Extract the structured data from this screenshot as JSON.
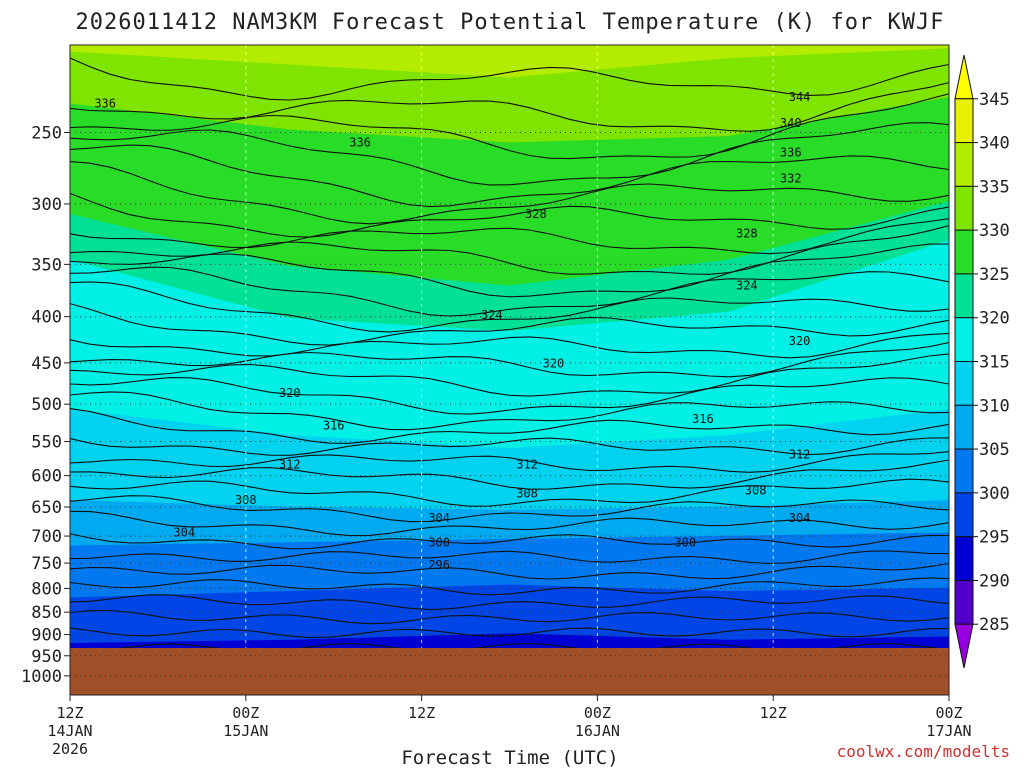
{
  "chart_data": {
    "type": "heatmap",
    "title": "2026011412 NAM3KM Forecast Potential Temperature (K) for KWJF",
    "xlabel": "Forecast Time (UTC)",
    "credit": "coolwx.com/modelts",
    "y_ticks": [
      "250",
      "300",
      "350",
      "400",
      "450",
      "500",
      "550",
      "600",
      "650",
      "700",
      "750",
      "800",
      "850",
      "900",
      "950",
      "1000"
    ],
    "x_ticks": [
      {
        "hour": "12Z",
        "date": "14JAN",
        "year": "2026"
      },
      {
        "hour": "00Z",
        "date": "15JAN",
        "year": ""
      },
      {
        "hour": "12Z",
        "date": "",
        "year": ""
      },
      {
        "hour": "00Z",
        "date": "16JAN",
        "year": ""
      },
      {
        "hour": "12Z",
        "date": "",
        "year": ""
      },
      {
        "hour": "00Z",
        "date": "17JAN",
        "year": ""
      }
    ],
    "colorbar": {
      "labels": [
        "345",
        "340",
        "335",
        "330",
        "325",
        "320",
        "315",
        "310",
        "305",
        "300",
        "295",
        "290",
        "285"
      ],
      "colors": [
        "#e6f000",
        "#b4ec00",
        "#7fe400",
        "#28dc28",
        "#00e196",
        "#00f0e6",
        "#00d2f0",
        "#00aaf0",
        "#0078f0",
        "#0046e6",
        "#0000d2",
        "#5000c8",
        "#9600e0"
      ]
    },
    "contour_labels": [
      {
        "value": "344",
        "x": 0.83,
        "y": 0.08
      },
      {
        "value": "340",
        "x": 0.82,
        "y": 0.12
      },
      {
        "value": "336",
        "x": 0.82,
        "y": 0.165
      },
      {
        "value": "336",
        "x": 0.33,
        "y": 0.15
      },
      {
        "value": "336",
        "x": 0.04,
        "y": 0.09
      },
      {
        "value": "332",
        "x": 0.82,
        "y": 0.205
      },
      {
        "value": "328",
        "x": 0.53,
        "y": 0.26
      },
      {
        "value": "328",
        "x": 0.77,
        "y": 0.29
      },
      {
        "value": "324",
        "x": 0.77,
        "y": 0.37
      },
      {
        "value": "324",
        "x": 0.48,
        "y": 0.415
      },
      {
        "value": "320",
        "x": 0.83,
        "y": 0.455
      },
      {
        "value": "320",
        "x": 0.55,
        "y": 0.49
      },
      {
        "value": "320",
        "x": 0.25,
        "y": 0.535
      },
      {
        "value": "316",
        "x": 0.72,
        "y": 0.575
      },
      {
        "value": "316",
        "x": 0.3,
        "y": 0.585
      },
      {
        "value": "312",
        "x": 0.83,
        "y": 0.63
      },
      {
        "value": "312",
        "x": 0.52,
        "y": 0.645
      },
      {
        "value": "312",
        "x": 0.25,
        "y": 0.645
      },
      {
        "value": "308",
        "x": 0.78,
        "y": 0.685
      },
      {
        "value": "308",
        "x": 0.52,
        "y": 0.69
      },
      {
        "value": "308",
        "x": 0.2,
        "y": 0.7
      },
      {
        "value": "304",
        "x": 0.83,
        "y": 0.728
      },
      {
        "value": "304",
        "x": 0.42,
        "y": 0.728
      },
      {
        "value": "304",
        "x": 0.13,
        "y": 0.75
      },
      {
        "value": "300",
        "x": 0.7,
        "y": 0.765
      },
      {
        "value": "300",
        "x": 0.42,
        "y": 0.765
      },
      {
        "value": "296",
        "x": 0.42,
        "y": 0.8
      }
    ]
  }
}
